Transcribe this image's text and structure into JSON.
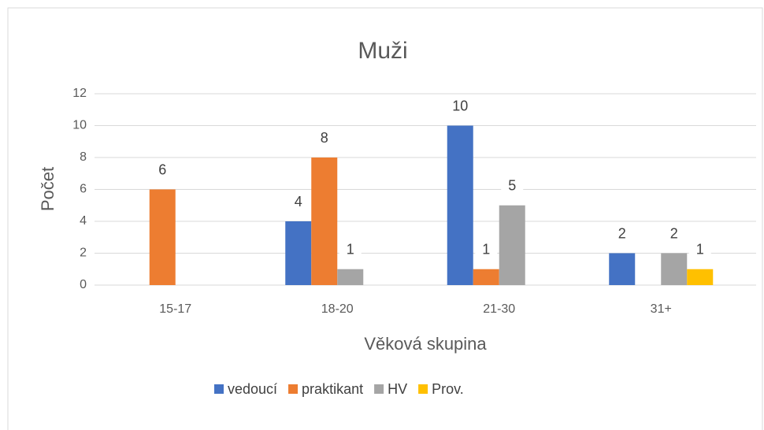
{
  "chart_data": {
    "type": "bar",
    "title": "Muži",
    "x_label": "Věková skupina",
    "y_label": "Počet",
    "categories": [
      "15-17",
      "18-20",
      "21-30",
      "31+"
    ],
    "series": [
      {
        "name": "vedoucí",
        "color": "#4472c4",
        "values": [
          null,
          4,
          10,
          2
        ]
      },
      {
        "name": "praktikant",
        "color": "#ed7d31",
        "values": [
          6,
          8,
          1,
          null
        ]
      },
      {
        "name": "HV",
        "color": "#a5a5a5",
        "values": [
          null,
          1,
          5,
          2
        ]
      },
      {
        "name": "Prov.",
        "color": "#ffc000",
        "values": [
          null,
          null,
          null,
          1
        ]
      }
    ],
    "ylim": [
      0,
      12
    ],
    "yticks": [
      0,
      2,
      4,
      6,
      8,
      10,
      12
    ],
    "grid": true,
    "legend": "bottom"
  }
}
